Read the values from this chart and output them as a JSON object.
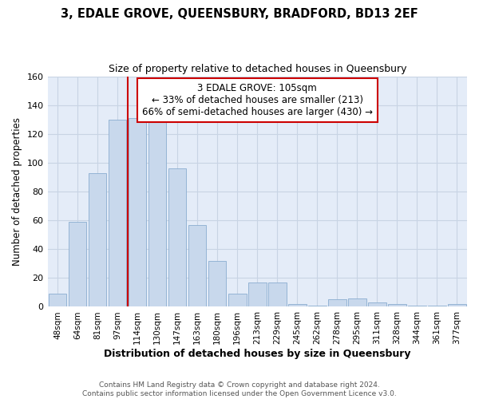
{
  "title": "3, EDALE GROVE, QUEENSBURY, BRADFORD, BD13 2EF",
  "subtitle": "Size of property relative to detached houses in Queensbury",
  "xlabel": "Distribution of detached houses by size in Queensbury",
  "ylabel": "Number of detached properties",
  "categories": [
    "48sqm",
    "64sqm",
    "81sqm",
    "97sqm",
    "114sqm",
    "130sqm",
    "147sqm",
    "163sqm",
    "180sqm",
    "196sqm",
    "213sqm",
    "229sqm",
    "245sqm",
    "262sqm",
    "278sqm",
    "295sqm",
    "311sqm",
    "328sqm",
    "344sqm",
    "361sqm",
    "377sqm"
  ],
  "values": [
    9,
    59,
    93,
    130,
    131,
    132,
    96,
    57,
    32,
    9,
    17,
    17,
    2,
    1,
    5,
    6,
    3,
    2,
    1,
    1,
    2
  ],
  "bar_color": "#c8d8ec",
  "bar_edge_color": "#8aadd0",
  "red_line_x": 3.5,
  "annotation_title": "3 EDALE GROVE: 105sqm",
  "annotation_line1": "← 33% of detached houses are smaller (213)",
  "annotation_line2": "66% of semi-detached houses are larger (430) →",
  "annotation_box_color": "#ffffff",
  "annotation_box_edge_color": "#cc0000",
  "red_line_color": "#cc0000",
  "ylim": [
    0,
    160
  ],
  "yticks": [
    0,
    20,
    40,
    60,
    80,
    100,
    120,
    140,
    160
  ],
  "grid_color": "#c8d4e4",
  "background_color": "#e4ecf8",
  "footer_line1": "Contains HM Land Registry data © Crown copyright and database right 2024.",
  "footer_line2": "Contains public sector information licensed under the Open Government Licence v3.0."
}
